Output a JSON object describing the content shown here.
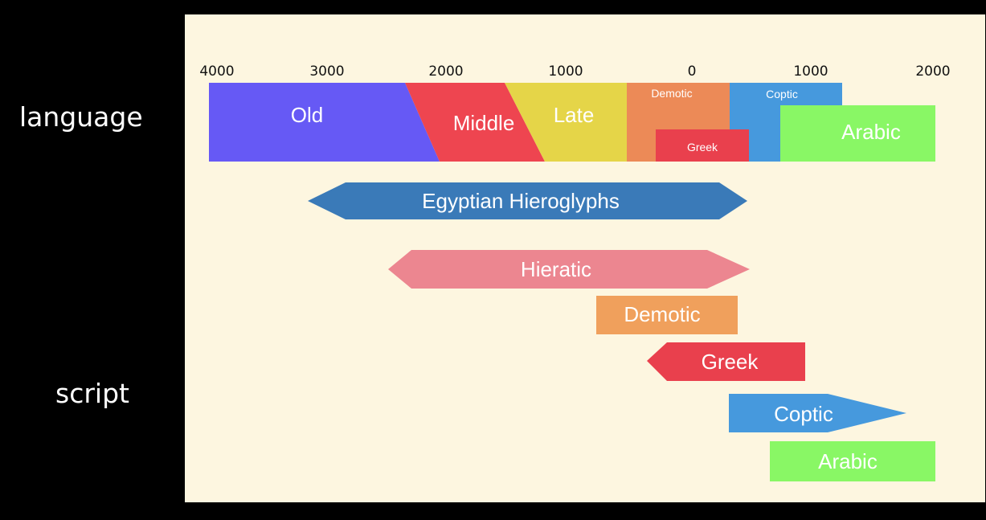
{
  "row_labels": {
    "language": "language",
    "script": "script"
  },
  "axis": {
    "ticks": [
      "4000",
      "3000",
      "2000",
      "1000",
      "0",
      "1000",
      "2000"
    ]
  },
  "language_periods": [
    {
      "name": "Old",
      "color": "#6659f5"
    },
    {
      "name": "Middle",
      "color": "#ee4550"
    },
    {
      "name": "Late",
      "color": "#e5d548"
    },
    {
      "name": "Demotic",
      "color": "#ec8a57"
    },
    {
      "name": "Greek",
      "color": "#e9404d"
    },
    {
      "name": "Coptic",
      "color": "#4699dd"
    },
    {
      "name": "Arabic",
      "color": "#89f765"
    }
  ],
  "scripts": [
    {
      "name": "Egyptian Hieroglyphs",
      "color": "#3a7ab8"
    },
    {
      "name": "Hieratic",
      "color": "#ec8690"
    },
    {
      "name": "Demotic",
      "color": "#f0a05c"
    },
    {
      "name": "Greek",
      "color": "#e9404d"
    },
    {
      "name": "Coptic",
      "color": "#4699dd"
    },
    {
      "name": "Arabic",
      "color": "#89f765"
    }
  ]
}
